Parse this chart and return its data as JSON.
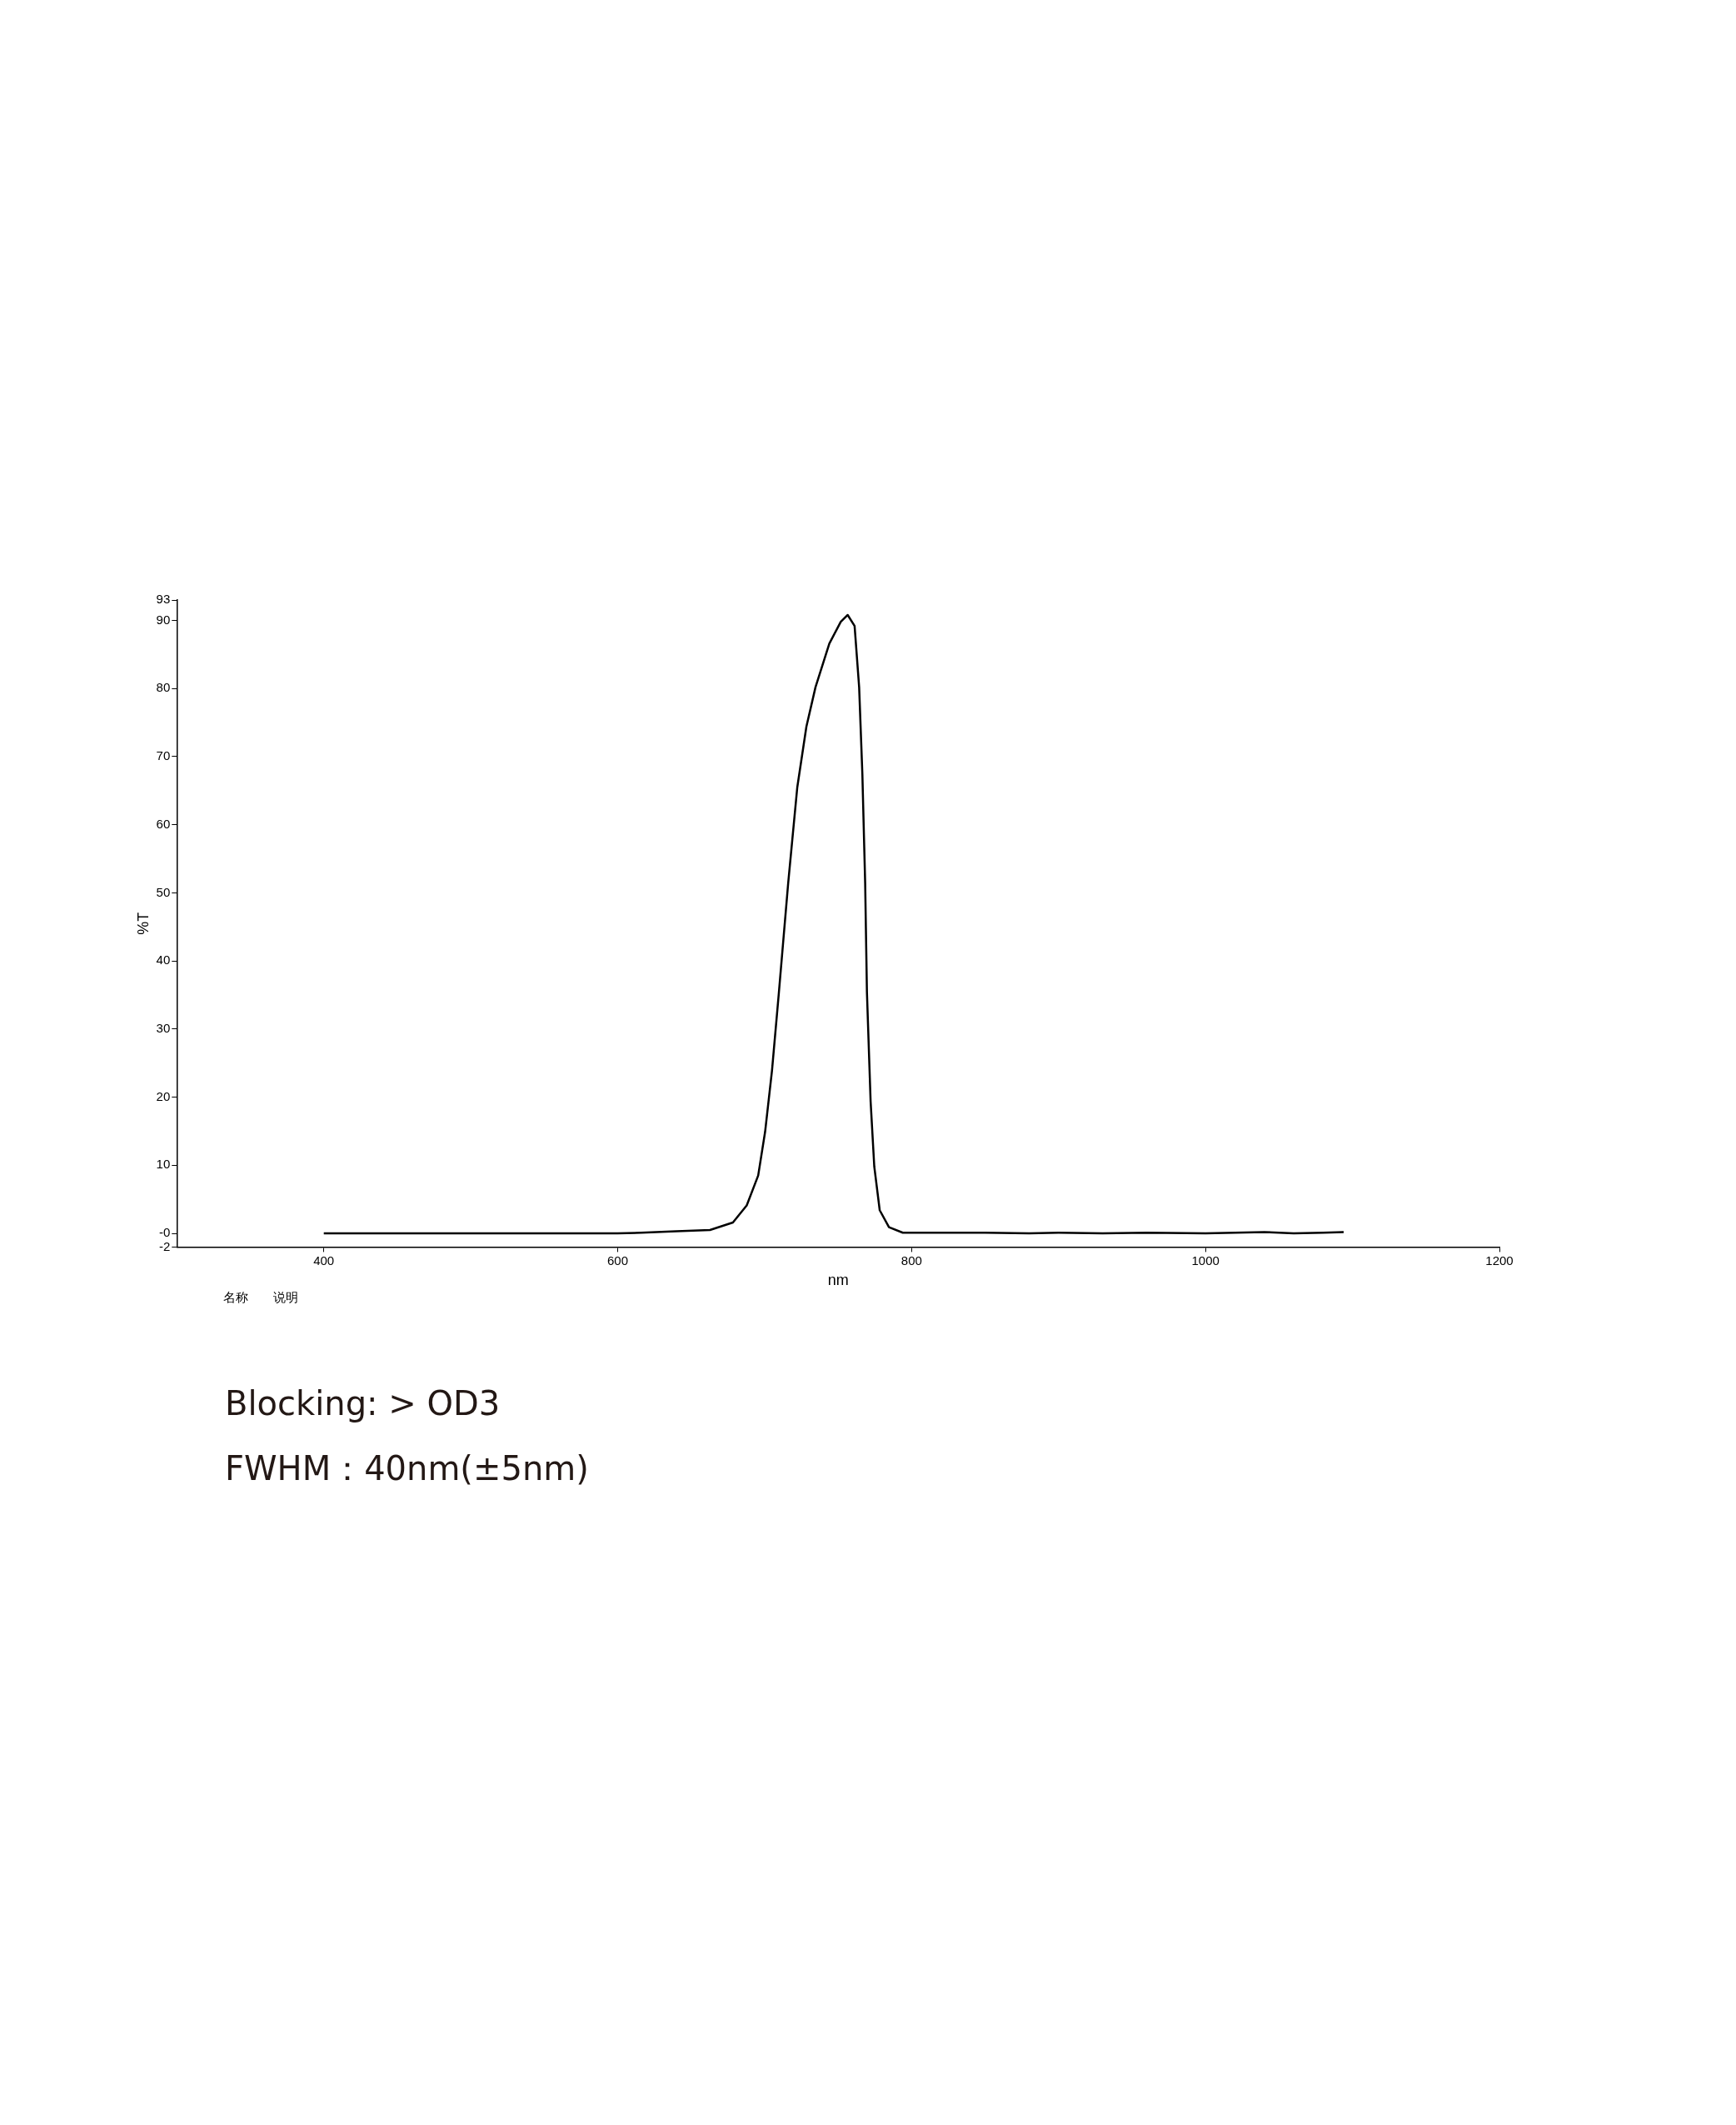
{
  "chart_data": {
    "type": "line",
    "xlabel": "nm",
    "ylabel": "%T",
    "xlim": [
      300,
      1200
    ],
    "xticks": [
      400,
      600,
      800,
      1000,
      1200
    ],
    "ylim": [
      -2,
      93
    ],
    "yticks": [
      -2,
      {
        "value": 0,
        "label": "-0"
      },
      10,
      20,
      30,
      40,
      50,
      60,
      70,
      80,
      90,
      93
    ],
    "grid": false,
    "legend": false,
    "marker": "none",
    "line_style": "solid",
    "annotations": [
      "名称",
      "说明",
      "Blocking:  > OD3",
      "FWHM：40nm(±5nm)"
    ],
    "series": [
      {
        "color": "#000000",
        "x": [
          400,
          500,
          600,
          616,
          640,
          662.8,
          678.4,
          687.8,
          695.6,
          700.3,
          705,
          709.7,
          716,
          722.2,
          728.4,
          734.6,
          744,
          751.8,
          756.5,
          761.2,
          764.3,
          766.5,
          768.4,
          769.6,
          772.1,
          774.6,
          778.3,
          784.6,
          794,
          850,
          880,
          900,
          930,
          960,
          1000,
          1020,
          1040,
          1060,
          1080,
          1094
        ],
        "values": [
          0,
          0,
          0,
          0.1,
          0.3,
          0.5,
          1.6,
          4.1,
          8.5,
          14.9,
          23.9,
          35.4,
          51.4,
          65.5,
          74.4,
          80.2,
          86.6,
          89.8,
          90.8,
          89.2,
          80.2,
          67.4,
          51.4,
          35.4,
          19.4,
          9.8,
          3.4,
          0.9,
          0.1,
          0.1,
          0,
          0.1,
          0,
          0.1,
          0,
          0.1,
          0.2,
          0,
          0.1,
          0.2
        ]
      }
    ]
  }
}
